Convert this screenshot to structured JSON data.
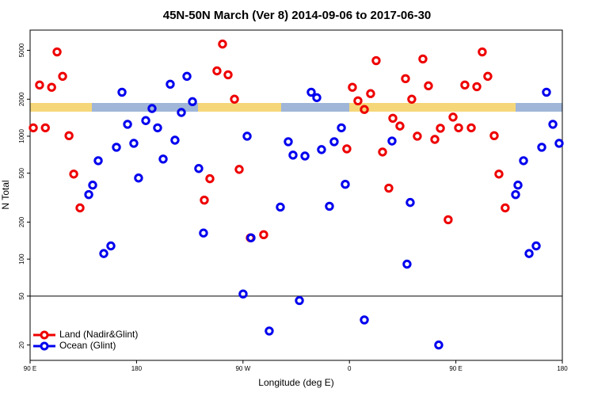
{
  "chart_data": {
    "type": "scatter",
    "title": "45N-50N March (Ver 8)   2014-09-06 to 2017-06-30",
    "xlabel": "Longitude (deg E)",
    "ylabel": "N Total",
    "xlim": [
      90,
      540
    ],
    "xticks": [
      {
        "value": 90,
        "label": "90 E"
      },
      {
        "value": 180,
        "label": "180"
      },
      {
        "value": 270,
        "label": "90 W"
      },
      {
        "value": 360,
        "label": "0"
      },
      {
        "value": 450,
        "label": "90 E"
      },
      {
        "value": 540,
        "label": "180"
      }
    ],
    "ylim": [
      15,
      7300
    ],
    "yticks": [
      20,
      50,
      100,
      200,
      500,
      1000,
      2000,
      5000
    ],
    "log_y": true,
    "reference_line": 50,
    "legend": "lower left",
    "series": [
      {
        "name": "Land (Nadir&Glint)",
        "color": "#ee0000",
        "x": [
          92.7,
          98.0,
          102.9,
          108.2,
          112.8,
          117.5,
          122.9,
          126.9,
          132.2,
          237.3,
          242.0,
          248.0,
          252.7,
          257.4,
          262.8,
          266.8,
          276.2,
          287.5,
          357.8,
          362.5,
          367.2,
          372.6,
          377.9,
          382.6,
          388.0,
          393.3,
          396.7,
          402.7,
          407.4,
          412.7,
          417.4,
          422.1,
          426.8,
          432.2,
          436.9,
          443.5,
          447.6,
          452.3,
          457.6,
          463.0,
          467.7,
          472.3,
          477.0,
          482.4,
          486.4,
          491.7
        ],
        "values": [
          1170,
          2610,
          1170,
          2500,
          4850,
          3070,
          1010,
          492,
          261,
          302,
          451,
          3400,
          5620,
          3160,
          2000,
          537,
          149,
          158,
          789,
          2500,
          1940,
          1650,
          2220,
          4120,
          744,
          378,
          1400,
          1210,
          2940,
          2000,
          1000,
          4250,
          2570,
          942,
          1160,
          209,
          1430,
          1170,
          2610,
          1170,
          2530,
          4850,
          3070,
          1010,
          492,
          261
        ]
      },
      {
        "name": "Ocean (Glint)",
        "color": "#0000ee",
        "x": [
          139.6,
          142.9,
          147.6,
          152.3,
          158.3,
          163.0,
          167.7,
          172.4,
          177.7,
          181.7,
          187.8,
          193.1,
          197.8,
          202.5,
          208.5,
          212.5,
          217.9,
          222.6,
          227.3,
          232.6,
          236.6,
          270.1,
          273.5,
          276.8,
          292.2,
          301.6,
          308.3,
          312.3,
          317.7,
          322.4,
          327.7,
          332.4,
          336.4,
          343.1,
          347.1,
          353.2,
          356.5,
          372.6,
          396.0,
          408.7,
          411.4,
          435.5,
          500.5,
          502.5,
          507.2,
          511.9,
          517.9,
          522.6,
          526.6,
          532.0,
          537.3
        ],
        "values": [
          335,
          400,
          632,
          111,
          128,
          813,
          2280,
          1250,
          875,
          457,
          1340,
          1680,
          1170,
          652,
          2650,
          928,
          1560,
          3070,
          1910,
          546,
          163,
          52,
          1000,
          149,
          26,
          265,
          902,
          702,
          46,
          690,
          2280,
          2060,
          778,
          269,
          902,
          1170,
          406,
          32,
          914,
          91,
          289,
          20,
          335,
          400,
          632,
          111,
          128,
          813,
          2280,
          1250,
          875
        ]
      }
    ]
  }
}
